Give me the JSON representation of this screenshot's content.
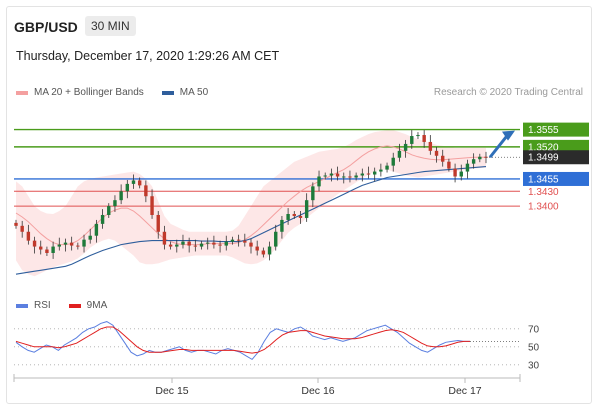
{
  "header": {
    "symbol": "GBP/USD",
    "timeframe": "30 MIN",
    "datetime": "Thursday, December 17, 2020 1:29:26 AM CET",
    "credit": "Research © 2020 Trading Central"
  },
  "legend": {
    "ma20_bb_label": "MA 20 + Bollinger Bands",
    "ma50_label": "MA 50",
    "rsi_label": "RSI",
    "rsi_ma_label": "9MA"
  },
  "colors": {
    "bollinger_fill": "#fde3e3",
    "ma20": "#f4a0a0",
    "ma50": "#2f5e9c",
    "resistance": "#4a9c1b",
    "pivot": "#2f6fd6",
    "support": "#e05050",
    "candle_up": "#1e7a3a",
    "candle_down": "#c0392b",
    "arrow": "#2f6fb8",
    "rsi": "#5b7fe0",
    "rsi_ma": "#e02020",
    "last_price_bg": "#2b2b2b"
  },
  "chart_data": [
    {
      "type": "candlestick",
      "title": "GBP/USD 30 MIN",
      "x_ticks": [
        "Dec 15",
        "Dec 16",
        "Dec 17"
      ],
      "ylim": [
        1.323,
        1.3615
      ],
      "last_price": 1.3499,
      "levels": [
        {
          "value": 1.3555,
          "label": "1.3555",
          "kind": "resistance"
        },
        {
          "value": 1.352,
          "label": "1.3520",
          "kind": "resistance"
        },
        {
          "value": 1.3455,
          "label": "1.3455",
          "kind": "pivot"
        },
        {
          "value": 1.343,
          "label": "1.3430",
          "kind": "support"
        },
        {
          "value": 1.34,
          "label": "1.3400",
          "kind": "support"
        }
      ],
      "close": [
        1.336,
        1.3348,
        1.333,
        1.3318,
        1.3312,
        1.3305,
        1.3318,
        1.3322,
        1.3326,
        1.332,
        1.3318,
        1.3332,
        1.334,
        1.3364,
        1.3382,
        1.34,
        1.3412,
        1.343,
        1.3445,
        1.3452,
        1.3442,
        1.342,
        1.3382,
        1.3348,
        1.3322,
        1.3318,
        1.3322,
        1.3328,
        1.332,
        1.3318,
        1.3324,
        1.3326,
        1.3322,
        1.332,
        1.3328,
        1.3332,
        1.333,
        1.3326,
        1.3318,
        1.331,
        1.3302,
        1.3318,
        1.3348,
        1.3372,
        1.3384,
        1.338,
        1.3376,
        1.3412,
        1.344,
        1.346,
        1.3462,
        1.3466,
        1.346,
        1.346,
        1.3458,
        1.3462,
        1.3466,
        1.3464,
        1.347,
        1.3474,
        1.3482,
        1.3498,
        1.3512,
        1.3526,
        1.3542,
        1.3544,
        1.353,
        1.3512,
        1.3502,
        1.349,
        1.3476,
        1.346,
        1.347,
        1.3486,
        1.3495,
        1.35,
        1.3499
      ],
      "ma20": [
        1.3386,
        1.3378,
        1.3368,
        1.3356,
        1.3344,
        1.3334,
        1.3326,
        1.3322,
        1.3322,
        1.3324,
        1.333,
        1.334,
        1.3352,
        1.3364,
        1.3376,
        1.3386,
        1.3392,
        1.3396,
        1.3396,
        1.339,
        1.338,
        1.3368,
        1.3356,
        1.3344,
        1.3334,
        1.3328,
        1.3324,
        1.3322,
        1.3322,
        1.3322,
        1.3322,
        1.3324,
        1.3324,
        1.3324,
        1.3324,
        1.3324,
        1.3326,
        1.3332,
        1.334,
        1.335,
        1.3362,
        1.3374,
        1.3386,
        1.3398,
        1.341,
        1.342,
        1.343,
        1.3438,
        1.3444,
        1.345,
        1.3456,
        1.3462,
        1.3468,
        1.3474,
        1.3482,
        1.3492,
        1.3502,
        1.351,
        1.3516,
        1.352,
        1.3522,
        1.352,
        1.3516,
        1.351,
        1.3504,
        1.35,
        1.3497,
        1.3495,
        1.3494,
        1.3494,
        1.3495,
        1.3496,
        1.3497,
        1.3498,
        1.3499,
        1.3499,
        1.3499
      ],
      "bb_upper": [
        1.345,
        1.344,
        1.342,
        1.34,
        1.339,
        1.3385,
        1.3384,
        1.339,
        1.34,
        1.342,
        1.344,
        1.345,
        1.3455,
        1.3458,
        1.346,
        1.3462,
        1.3464,
        1.3466,
        1.3468,
        1.347,
        1.3465,
        1.3455,
        1.344,
        1.341,
        1.338,
        1.3364,
        1.3358,
        1.3352,
        1.3348,
        1.3348,
        1.3348,
        1.3348,
        1.3348,
        1.3348,
        1.3348,
        1.335,
        1.336,
        1.338,
        1.34,
        1.342,
        1.344,
        1.345,
        1.346,
        1.347,
        1.348,
        1.349,
        1.3495,
        1.35,
        1.3505,
        1.351,
        1.3512,
        1.3514,
        1.3516,
        1.352,
        1.3526,
        1.3534,
        1.354,
        1.3546,
        1.355,
        1.3552,
        1.3554,
        1.3554,
        1.355,
        1.3546,
        1.354,
        1.3536,
        1.3532,
        1.3528,
        1.3524,
        1.3522,
        1.352,
        1.3518,
        1.3518,
        1.3518,
        1.3518,
        1.3518,
        1.3518
      ],
      "bb_lower": [
        1.329,
        1.327,
        1.3262,
        1.3258,
        1.3264,
        1.327,
        1.3276,
        1.328,
        1.3284,
        1.3288,
        1.3294,
        1.3304,
        1.3316,
        1.3324,
        1.333,
        1.3334,
        1.333,
        1.332,
        1.331,
        1.33,
        1.3286,
        1.3282,
        1.3282,
        1.3284,
        1.3288,
        1.3292,
        1.3294,
        1.3296,
        1.3298,
        1.33,
        1.33,
        1.33,
        1.33,
        1.33,
        1.33,
        1.3296,
        1.329,
        1.3284,
        1.3282,
        1.3284,
        1.329,
        1.33,
        1.3314,
        1.333,
        1.3346,
        1.3356,
        1.3364,
        1.3376,
        1.3386,
        1.3396,
        1.3404,
        1.3414,
        1.3424,
        1.3432,
        1.344,
        1.3448,
        1.3456,
        1.3464,
        1.347,
        1.3474,
        1.3474,
        1.347,
        1.3466,
        1.3462,
        1.346,
        1.3458,
        1.346,
        1.3462,
        1.3464,
        1.3466,
        1.3468,
        1.347,
        1.3472,
        1.3474,
        1.3476,
        1.3477,
        1.3478
      ],
      "ma50": [
        1.3262,
        1.3264,
        1.3266,
        1.3268,
        1.327,
        1.3272,
        1.3274,
        1.3276,
        1.3278,
        1.3282,
        1.3288,
        1.3294,
        1.33,
        1.3305,
        1.331,
        1.3314,
        1.3318,
        1.3322,
        1.3324,
        1.3326,
        1.3328,
        1.3329,
        1.333,
        1.333,
        1.333,
        1.333,
        1.333,
        1.333,
        1.333,
        1.333,
        1.3329,
        1.3329,
        1.3329,
        1.3328,
        1.3328,
        1.3328,
        1.3328,
        1.333,
        1.3334,
        1.334,
        1.3346,
        1.3352,
        1.3358,
        1.3364,
        1.337,
        1.3376,
        1.3382,
        1.3388,
        1.3394,
        1.34,
        1.3406,
        1.3412,
        1.3418,
        1.3424,
        1.343,
        1.3436,
        1.3442,
        1.3446,
        1.345,
        1.3454,
        1.3458,
        1.346,
        1.3462,
        1.3464,
        1.3466,
        1.3468,
        1.347,
        1.3471,
        1.3472,
        1.3473,
        1.3474,
        1.3475,
        1.3476,
        1.3477,
        1.3478,
        1.3479,
        1.348
      ]
    },
    {
      "type": "line",
      "title": "RSI",
      "y_ticks": [
        "70",
        "50",
        "30"
      ],
      "ylim": [
        22,
        82
      ],
      "series": [
        {
          "name": "RSI",
          "values": [
            55,
            50,
            46,
            44,
            48,
            52,
            50,
            46,
            52,
            56,
            60,
            66,
            70,
            72,
            76,
            78,
            74,
            64,
            54,
            44,
            40,
            42,
            46,
            44,
            44,
            46,
            48,
            50,
            46,
            44,
            46,
            46,
            44,
            42,
            46,
            48,
            46,
            44,
            40,
            36,
            44,
            56,
            66,
            70,
            68,
            66,
            70,
            72,
            68,
            62,
            60,
            58,
            60,
            58,
            56,
            58,
            60,
            64,
            68,
            70,
            72,
            74,
            70,
            66,
            60,
            54,
            50,
            46,
            44,
            48,
            52,
            55,
            56,
            57,
            56,
            56
          ]
        },
        {
          "name": "9MA",
          "values": [
            56,
            54,
            52,
            50,
            50,
            50,
            50,
            49,
            50,
            52,
            54,
            58,
            62,
            66,
            70,
            72,
            72,
            68,
            62,
            56,
            50,
            46,
            44,
            44,
            44,
            45,
            46,
            47,
            47,
            46,
            46,
            46,
            46,
            46,
            46,
            46,
            46,
            45,
            44,
            43,
            44,
            47,
            52,
            58,
            63,
            66,
            67,
            68,
            68,
            66,
            64,
            62,
            61,
            60,
            59,
            59,
            59,
            60,
            62,
            64,
            66,
            68,
            69,
            68,
            66,
            62,
            58,
            54,
            51,
            50,
            50,
            51,
            53,
            55,
            56,
            56
          ]
        }
      ]
    }
  ]
}
